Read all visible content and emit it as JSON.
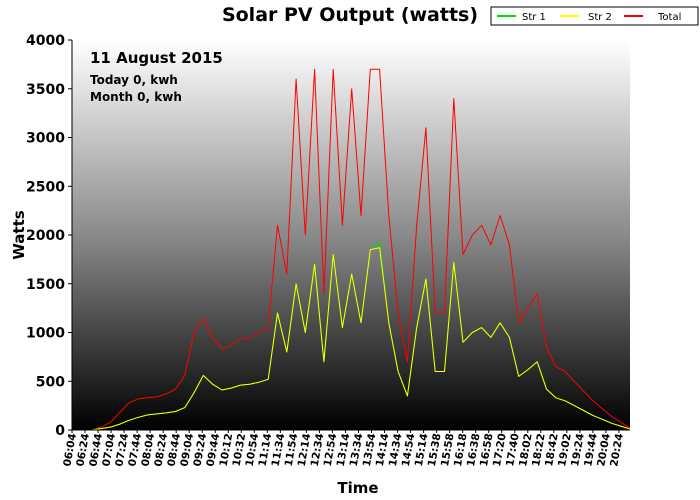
{
  "chart_data": {
    "type": "line",
    "title": "Solar PV Output (watts)",
    "xlabel": "Time",
    "ylabel": "Watts",
    "ylim": [
      0,
      4000
    ],
    "y_ticks": [
      0,
      500,
      1000,
      1500,
      2000,
      2500,
      3000,
      3500,
      4000
    ],
    "x_ticks": [
      "06:04",
      "06:24",
      "06:44",
      "07:04",
      "07:24",
      "07:44",
      "08:04",
      "08:24",
      "08:44",
      "09:04",
      "09:24",
      "09:44",
      "10:12",
      "10:32",
      "10:54",
      "11:14",
      "11:34",
      "11:54",
      "12:14",
      "12:34",
      "12:54",
      "13:14",
      "13:34",
      "13:54",
      "14:14",
      "14:34",
      "14:54",
      "15:14",
      "15:38",
      "15:58",
      "16:18",
      "16:38",
      "16:58",
      "17:20",
      "17:40",
      "18:02",
      "18:22",
      "18:42",
      "19:02",
      "19:24",
      "19:44",
      "20:04",
      "20:24"
    ],
    "annotations": {
      "date": "11 August 2015",
      "today": "Today 0, kwh",
      "month": "Month 0, kwh"
    },
    "legend": {
      "placement": "top-right",
      "entries": [
        "Str 1",
        "Str 2",
        "Total"
      ]
    },
    "series": [
      {
        "name": "Str 1",
        "color": "#00dd00",
        "values": [
          0,
          15,
          30,
          60,
          100,
          130,
          155,
          165,
          175,
          190,
          230,
          380,
          560,
          470,
          410,
          430,
          460,
          470,
          490,
          520,
          1200,
          800,
          1500,
          1000,
          1700,
          700,
          1800,
          1050,
          1600,
          1100,
          1850,
          1930,
          1100,
          600,
          350,
          1050,
          1550,
          600,
          600,
          1720,
          900,
          1000,
          1050,
          950,
          1100,
          950,
          550,
          620,
          700,
          420,
          330,
          300,
          250,
          200,
          150,
          110,
          70,
          40,
          10
        ]
      },
      {
        "name": "Str 2",
        "color": "#ffff00",
        "values": [
          0,
          15,
          30,
          60,
          100,
          130,
          155,
          165,
          175,
          190,
          230,
          380,
          560,
          470,
          410,
          430,
          460,
          470,
          490,
          520,
          1200,
          800,
          1500,
          1000,
          1700,
          700,
          1800,
          1050,
          1600,
          1100,
          1850,
          1870,
          1100,
          600,
          350,
          1050,
          1550,
          600,
          600,
          1720,
          900,
          1000,
          1050,
          950,
          1100,
          950,
          550,
          620,
          700,
          420,
          330,
          300,
          250,
          200,
          150,
          110,
          70,
          40,
          10
        ]
      },
      {
        "name": "Total",
        "color": "#ff0000",
        "values": [
          0,
          30,
          80,
          180,
          280,
          320,
          330,
          340,
          370,
          420,
          560,
          1000,
          1150,
          950,
          830,
          870,
          930,
          950,
          1000,
          1050,
          2100,
          1600,
          3600,
          2000,
          3700,
          1400,
          3700,
          2100,
          3500,
          2200,
          3700,
          3700,
          2200,
          1200,
          700,
          2100,
          3100,
          1200,
          1200,
          3400,
          1800,
          2000,
          2100,
          1900,
          2200,
          1900,
          1100,
          1250,
          1400,
          850,
          650,
          600,
          500,
          400,
          300,
          220,
          140,
          80,
          20
        ]
      }
    ]
  }
}
